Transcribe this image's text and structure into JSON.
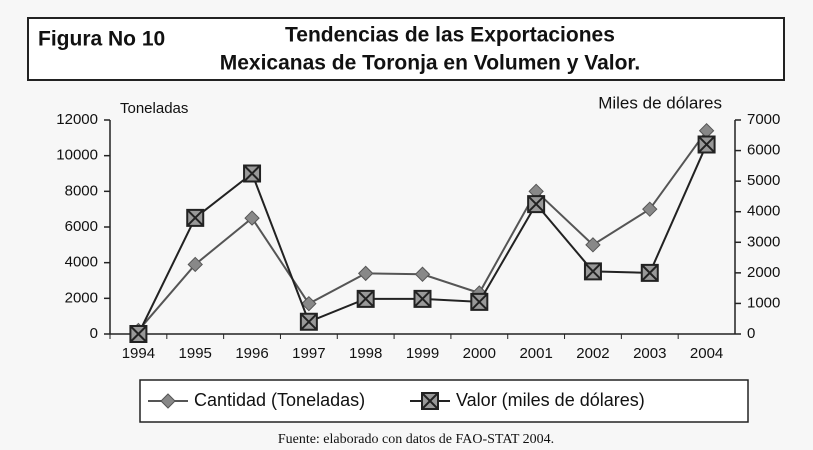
{
  "chart_data": {
    "type": "line",
    "figure_label": "Figura No 10",
    "title_lines": [
      "Tendencias de las Exportaciones",
      "Mexicanas de Toronja en Volumen y Valor."
    ],
    "y_label": "Toneladas",
    "y2_label": "Miles de dólares",
    "categories": [
      "1994",
      "1995",
      "1996",
      "1997",
      "1998",
      "1999",
      "2000",
      "2001",
      "2002",
      "2003",
      "2004"
    ],
    "series": [
      {
        "name": "Cantidad (Toneladas)",
        "color": "#555555",
        "marker": "diamond",
        "axis": "y",
        "values": [
          200,
          3900,
          6500,
          1700,
          3400,
          3350,
          2300,
          8000,
          5000,
          7000,
          11400
        ]
      },
      {
        "name": "Valor (miles de dólares)",
        "color": "#222222",
        "marker": "square-x",
        "axis": "y2",
        "values": [
          0,
          3800,
          5250,
          400,
          1150,
          1150,
          1050,
          4250,
          2050,
          2000,
          6200
        ]
      }
    ],
    "ylim": [
      0,
      12000
    ],
    "yticks": [
      0,
      2000,
      4000,
      6000,
      8000,
      10000,
      12000
    ],
    "y2lim": [
      0,
      7000
    ],
    "y2ticks": [
      0,
      1000,
      2000,
      3000,
      4000,
      5000,
      6000,
      7000
    ],
    "legend": "bottom",
    "source": "Fuente: elaborado con datos de FAO-STAT 2004."
  }
}
